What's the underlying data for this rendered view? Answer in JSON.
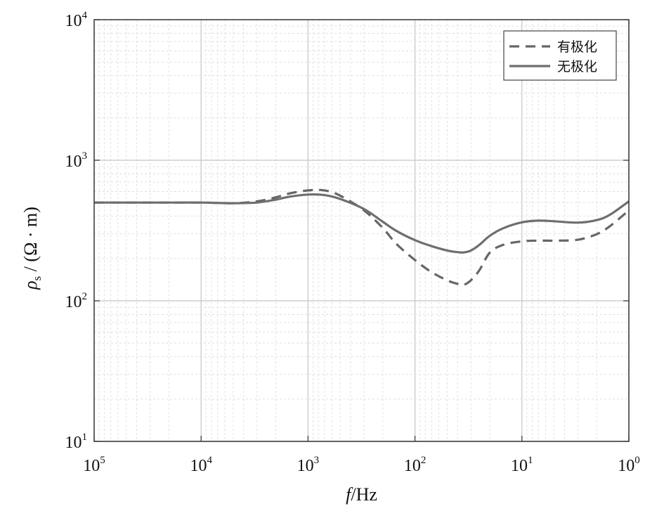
{
  "chart_data": {
    "type": "line",
    "xlabel": "f/Hz",
    "xlabel_italic": "f",
    "xlabel_unit": "/Hz",
    "ylabel": "ρs / (Ω · m)",
    "ylabel_symbol": "ρ",
    "ylabel_sub": "s",
    "ylabel_unit": " / (Ω · m)",
    "x_scale": "log",
    "y_scale": "log",
    "x_reversed": true,
    "xlim": [
      100000,
      1
    ],
    "ylim": [
      10,
      10000
    ],
    "grid": true,
    "minor_grid": true,
    "legend_position": "top-right",
    "x_ticks": [
      {
        "base": "10",
        "exp": "5",
        "value": 100000
      },
      {
        "base": "10",
        "exp": "4",
        "value": 10000
      },
      {
        "base": "10",
        "exp": "3",
        "value": 1000
      },
      {
        "base": "10",
        "exp": "2",
        "value": 100
      },
      {
        "base": "10",
        "exp": "1",
        "value": 10
      },
      {
        "base": "10",
        "exp": "0",
        "value": 1
      }
    ],
    "y_ticks": [
      {
        "base": "10",
        "exp": "4",
        "value": 10000
      },
      {
        "base": "10",
        "exp": "3",
        "value": 1000
      },
      {
        "base": "10",
        "exp": "2",
        "value": 100
      },
      {
        "base": "10",
        "exp": "1",
        "value": 10
      }
    ],
    "series": [
      {
        "name": "有极化",
        "style": "dashed",
        "color": "#666666",
        "x": [
          100000,
          50000,
          20000,
          10000,
          5000,
          3000,
          2000,
          1500,
          1000,
          700,
          500,
          300,
          200,
          150,
          100,
          70,
          50,
          40,
          35,
          30,
          25,
          20,
          15,
          10,
          7,
          5,
          3,
          2,
          1.5,
          1
        ],
        "y": [
          500,
          500,
          500,
          500,
          495,
          510,
          545,
          580,
          610,
          610,
          560,
          440,
          330,
          255,
          195,
          160,
          140,
          132,
          130,
          140,
          165,
          220,
          250,
          265,
          268,
          268,
          272,
          298,
          340,
          440
        ]
      },
      {
        "name": "无极化",
        "style": "solid",
        "color": "#6e6e6e",
        "x": [
          100000,
          50000,
          20000,
          10000,
          5000,
          3000,
          2000,
          1500,
          1000,
          700,
          500,
          300,
          200,
          150,
          100,
          70,
          50,
          40,
          35,
          30,
          25,
          20,
          15,
          10,
          7,
          5,
          3,
          2,
          1.5,
          1
        ],
        "y": [
          500,
          500,
          500,
          500,
          495,
          500,
          525,
          550,
          570,
          565,
          530,
          450,
          365,
          315,
          270,
          245,
          228,
          222,
          221,
          228,
          250,
          290,
          328,
          362,
          372,
          368,
          360,
          375,
          410,
          510
        ]
      }
    ]
  }
}
